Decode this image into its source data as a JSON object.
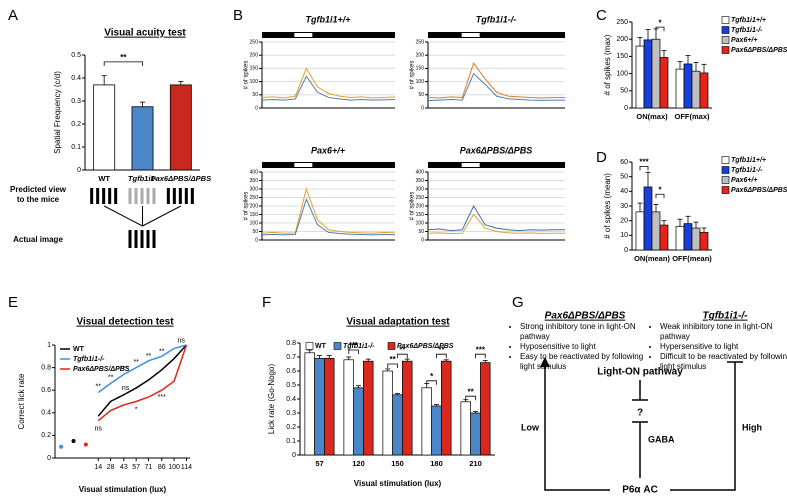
{
  "panel_labels": [
    "A",
    "B",
    "C",
    "D",
    "E",
    "F",
    "G"
  ],
  "chart_data": [
    {
      "type": "bar",
      "title": "Visual acuity test",
      "ylabel": "Spatial Frequency (c/d)",
      "categories": [
        "WT",
        "Tgfb1i1-",
        "Pax6ΔPBS/ΔPBS"
      ],
      "values": [
        0.37,
        0.275,
        0.37
      ],
      "errors": [
        0.04,
        0.02,
        0.015
      ],
      "colors": [
        "#ffffff",
        "#4a86c8",
        "#c8281e"
      ],
      "ylim": [
        0,
        0.5
      ],
      "yticks": [
        0,
        0.1,
        0.2,
        0.3,
        0.4,
        0.5
      ],
      "annotations": [
        {
          "text": "**",
          "categories": [
            0,
            1
          ],
          "y": 0.47
        }
      ],
      "side_labels": [
        "Predicted view",
        "to the mice",
        "Actual image"
      ]
    },
    {
      "type": "line",
      "title": "Tgfb1i1+/+",
      "ylabel": "# of spikes",
      "x": [
        -2,
        -1.5,
        -1,
        -0.5,
        0,
        0.5,
        1,
        1.5,
        2,
        2.5,
        3,
        3.5,
        4
      ],
      "xlim": [
        -2,
        4
      ],
      "ylim": [
        0,
        250
      ],
      "yticks": [
        0,
        50,
        100,
        150,
        200,
        250
      ],
      "grid": true,
      "series": [
        {
          "color": "#e3a22d",
          "values": [
            40,
            42,
            38,
            45,
            150,
            80,
            55,
            45,
            40,
            42,
            38,
            40,
            42
          ]
        },
        {
          "color": "#4f7fae",
          "values": [
            30,
            32,
            30,
            34,
            120,
            60,
            40,
            34,
            30,
            32,
            30,
            31,
            32
          ]
        }
      ]
    },
    {
      "type": "line",
      "title": "Tgfb1i1-/-",
      "ylabel": "# of spikes",
      "x": [
        -2,
        -1.5,
        -1,
        -0.5,
        0,
        0.5,
        1,
        1.5,
        2,
        2.5,
        3,
        3.5,
        4
      ],
      "xlim": [
        -2,
        4
      ],
      "ylim": [
        0,
        250
      ],
      "yticks": [
        0,
        50,
        100,
        150,
        200,
        250
      ],
      "grid": true,
      "series": [
        {
          "color": "#e07a2a",
          "values": [
            40,
            38,
            42,
            40,
            170,
            110,
            60,
            45,
            42,
            40,
            38,
            40,
            40
          ]
        },
        {
          "color": "#4f7fae",
          "values": [
            28,
            30,
            32,
            30,
            130,
            90,
            45,
            35,
            32,
            30,
            29,
            30,
            30
          ]
        }
      ]
    },
    {
      "type": "line",
      "title": "Pax6+/+",
      "ylabel": "# of spikes",
      "x": [
        -2,
        -1.5,
        -1,
        -0.5,
        0,
        0.5,
        1,
        1.5,
        2,
        2.5,
        3,
        3.5,
        4
      ],
      "xlim": [
        -2,
        4
      ],
      "ylim": [
        0,
        400
      ],
      "yticks": [
        0,
        50,
        100,
        150,
        200,
        250,
        300,
        350,
        400
      ],
      "grid": true,
      "series": [
        {
          "color": "#e3a22d",
          "values": [
            40,
            45,
            40,
            42,
            300,
            120,
            60,
            50,
            45,
            42,
            40,
            45,
            42
          ]
        },
        {
          "color": "#4f7fae",
          "values": [
            30,
            33,
            30,
            32,
            240,
            90,
            45,
            38,
            34,
            32,
            30,
            33,
            31
          ]
        }
      ]
    },
    {
      "type": "line",
      "title": "Pax6ΔPBS/ΔPBS",
      "ylabel": "# of spikes",
      "x": [
        -2,
        -1.5,
        -1,
        -0.5,
        0,
        0.5,
        1,
        1.5,
        2,
        2.5,
        3,
        3.5,
        4
      ],
      "xlim": [
        -2,
        4
      ],
      "ylim": [
        0,
        400
      ],
      "yticks": [
        0,
        50,
        100,
        150,
        200,
        250,
        300,
        350,
        400
      ],
      "grid": true,
      "series": [
        {
          "color": "#3f6ea3",
          "values": [
            60,
            65,
            55,
            60,
            200,
            90,
            70,
            60,
            55,
            60,
            58,
            60,
            60
          ]
        },
        {
          "color": "#e3a22d",
          "values": [
            40,
            42,
            38,
            40,
            150,
            70,
            50,
            42,
            40,
            41,
            39,
            40,
            40
          ]
        }
      ]
    },
    {
      "type": "bar",
      "ylabel": "# of spikes (max)",
      "categories": [
        "ON(max)",
        "OFF(max)"
      ],
      "ylim": [
        0,
        250
      ],
      "yticks": [
        0,
        50,
        100,
        150,
        200,
        250
      ],
      "legend": "right",
      "series": [
        {
          "name": "Tgfb1i1+/+",
          "color": "#ffffff",
          "values": [
            180,
            113
          ],
          "errors": [
            25,
            22
          ]
        },
        {
          "name": "Tgfb1i1-/-",
          "color": "#1a3fd6",
          "values": [
            198,
            128
          ],
          "errors": [
            30,
            25
          ]
        },
        {
          "name": "Pax6+/+",
          "color": "#bfbfbf",
          "values": [
            200,
            107
          ],
          "errors": [
            30,
            25
          ]
        },
        {
          "name": "Pax6ΔPBS/ΔPBS",
          "color": "#e8231a",
          "values": [
            147,
            102
          ],
          "errors": [
            20,
            25
          ]
        }
      ],
      "annotations": [
        {
          "text": "*",
          "category": 0,
          "series": [
            2,
            3
          ],
          "y": 235
        }
      ]
    },
    {
      "type": "bar",
      "ylabel": "# of spikes (mean)",
      "categories": [
        "ON(mean)",
        "OFF(mean)"
      ],
      "ylim": [
        0,
        60
      ],
      "yticks": [
        0,
        10,
        20,
        30,
        40,
        50,
        60
      ],
      "legend": "right",
      "series": [
        {
          "name": "Tgfb1i1+/+",
          "color": "#ffffff",
          "values": [
            26,
            16
          ],
          "errors": [
            6,
            5
          ]
        },
        {
          "name": "Tgfb1i1-/-",
          "color": "#1a3fd6",
          "values": [
            43,
            18
          ],
          "errors": [
            10,
            5
          ]
        },
        {
          "name": "Pax6+/+",
          "color": "#bfbfbf",
          "values": [
            26,
            15
          ],
          "errors": [
            5,
            4
          ]
        },
        {
          "name": "Pax6ΔPBS/ΔPBS",
          "color": "#e8231a",
          "values": [
            17,
            12
          ],
          "errors": [
            3,
            3
          ]
        }
      ],
      "annotations": [
        {
          "text": "***",
          "category": 0,
          "series": [
            0,
            1
          ],
          "y": 57
        },
        {
          "text": "*",
          "category": 0,
          "series": [
            2,
            3
          ],
          "y": 38
        }
      ]
    },
    {
      "type": "line",
      "title": "Visual detection test",
      "ylabel": "Correct lick rate",
      "xlabel": "Visual stimulation (lux)",
      "xlim": [
        -35,
        118
      ],
      "xticks": [
        14,
        28,
        43,
        57,
        71,
        86,
        100,
        114
      ],
      "ylim": [
        0,
        1
      ],
      "yticks": [
        0,
        0.2,
        0.4,
        0.6,
        0.8,
        1
      ],
      "legend": "upper left",
      "series": [
        {
          "name": "WT",
          "color": "#000000",
          "x": [
            -14,
            null,
            14,
            28,
            43,
            57,
            71,
            86,
            100,
            114
          ],
          "values": [
            0.15,
            null,
            0.37,
            0.5,
            0.56,
            0.62,
            0.69,
            0.78,
            0.88,
            1
          ]
        },
        {
          "name": "Tgfb1i1-/-",
          "color": "#3d8fe0",
          "x": [
            -28,
            null,
            14,
            28,
            43,
            57,
            71,
            86,
            100,
            114
          ],
          "values": [
            0.1,
            null,
            0.58,
            0.66,
            0.74,
            0.8,
            0.86,
            0.9,
            0.97,
            1
          ]
        },
        {
          "name": "Pax6ΔPBS/ΔPBS",
          "color": "#e8231a",
          "x": [
            0,
            null,
            14,
            28,
            43,
            57,
            71,
            86,
            100,
            114
          ],
          "values": [
            0.12,
            null,
            0.33,
            0.42,
            0.47,
            0.5,
            0.54,
            0.6,
            0.68,
            1
          ]
        }
      ],
      "annotations": [
        {
          "text": "ns",
          "x": 108,
          "y": 1.04
        },
        {
          "text": "**",
          "x": 86,
          "y": 0.94
        },
        {
          "text": "**",
          "x": 71,
          "y": 0.9
        },
        {
          "text": "**",
          "x": 57,
          "y": 0.85
        },
        {
          "text": "***",
          "x": 43,
          "y": 0.79
        },
        {
          "text": "**",
          "x": 28,
          "y": 0.71
        },
        {
          "text": "**",
          "x": 14,
          "y": 0.63
        },
        {
          "text": "ns",
          "x": 14,
          "y": 0.26
        },
        {
          "text": "ns",
          "x": 45,
          "y": 0.62
        },
        {
          "text": "*",
          "x": 57,
          "y": 0.43
        },
        {
          "text": "***",
          "x": 86,
          "y": 0.54
        }
      ]
    },
    {
      "type": "bar",
      "title": "Visual adaptation test",
      "ylabel": "Lick rate (Go-Nogo)",
      "xlabel": "Visual stimulation (lux)",
      "categories": [
        "57",
        "120",
        "150",
        "180",
        "210"
      ],
      "ylim": [
        0,
        0.8
      ],
      "yticks": [
        0,
        0.1,
        0.2,
        0.3,
        0.4,
        0.5,
        0.6,
        0.7,
        0.8
      ],
      "legend": "top",
      "series": [
        {
          "name": "WT",
          "color": "#ffffff",
          "values": [
            0.73,
            0.68,
            0.6,
            0.48,
            0.38
          ],
          "errors": [
            0.02,
            0.02,
            0.015,
            0.03,
            0.015
          ]
        },
        {
          "name": "Tgfb1i1-/-",
          "color": "#4a86c8",
          "values": [
            0.69,
            0.48,
            0.43,
            0.35,
            0.3
          ],
          "errors": [
            0.02,
            0.015,
            0.01,
            0.01,
            0.01
          ]
        },
        {
          "name": "Pax6ΔPBS/ΔPBS",
          "color": "#d9281e",
          "values": [
            0.69,
            0.67,
            0.67,
            0.67,
            0.66
          ],
          "errors": [
            0.02,
            0.015,
            0.015,
            0.01,
            0.015
          ]
        }
      ],
      "annotations": [
        {
          "text": "***",
          "category": 1,
          "series": [
            0,
            1
          ],
          "y": 0.75
        },
        {
          "text": "**",
          "category": 2,
          "series": [
            0,
            1
          ],
          "y": 0.65
        },
        {
          "text": "**",
          "category": 2,
          "series": [
            1,
            2
          ],
          "y": 0.72
        },
        {
          "text": "*",
          "category": 3,
          "series": [
            0,
            1
          ],
          "y": 0.53
        },
        {
          "text": "**",
          "category": 3,
          "series": [
            1,
            2
          ],
          "y": 0.72
        },
        {
          "text": "**",
          "category": 4,
          "series": [
            0,
            1
          ],
          "y": 0.42
        },
        {
          "text": "***",
          "category": 4,
          "series": [
            1,
            2
          ],
          "y": 0.72
        }
      ]
    }
  ],
  "diagram": {
    "left_title": "Pax6ΔPBS/ΔPBS",
    "left_points": [
      "Strong inhibitory tone in light-ON pathway",
      "Hyposensitive to light",
      "Easy to be reactivated by following light stimulus"
    ],
    "right_title": "Tgfb1i1-/-",
    "right_points": [
      "Weak inhibitory tone in light-ON pathway",
      "Hypersensitive to light",
      "Difficult to be reactivated by following light stimulus"
    ],
    "pathway": "Light-ON pathway",
    "unknown": "?",
    "mediator": "GABA",
    "source": "P6α AC",
    "low": "Low",
    "high": "High"
  }
}
